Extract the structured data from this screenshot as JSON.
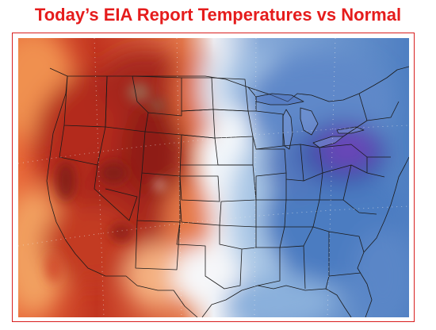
{
  "title": "Today’s EIA Report Temperatures vs Normal",
  "colors": {
    "title": "#e51c1c",
    "border": "#d81e1e",
    "warm_dark": "#8f1d14",
    "warm": "#c5331d",
    "warm_light": "#f08a45",
    "neutral": "#f4f8fb",
    "cool_light": "#aac8e6",
    "cool": "#4f7fc2",
    "cool_dark": "#3a52a8",
    "cold": "#6a45b8",
    "state_lines": "#1a1a1a"
  }
}
